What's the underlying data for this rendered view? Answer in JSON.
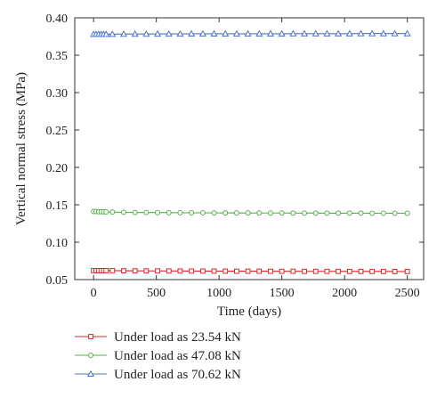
{
  "chart_data": {
    "type": "line",
    "xlabel": "Time (days)",
    "ylabel": "Vertical normal stress (MPa)",
    "xlim": [
      -150,
      2630
    ],
    "ylim": [
      0.05,
      0.4
    ],
    "xticks": [
      0,
      500,
      1000,
      1500,
      2000,
      2500
    ],
    "xtick_labels": [
      "0",
      "500",
      "1000",
      "1500",
      "2000",
      "2500"
    ],
    "yticks": [
      0.05,
      0.1,
      0.15,
      0.2,
      0.25,
      0.3,
      0.35,
      0.4
    ],
    "ytick_labels": [
      "0.05",
      "0.10",
      "0.15",
      "0.20",
      "0.25",
      "0.30",
      "0.35",
      "0.40"
    ],
    "grid": false,
    "legend_position": "bottom",
    "x": [
      0,
      20,
      40,
      60,
      80,
      100,
      150,
      240,
      330,
      420,
      510,
      600,
      690,
      780,
      870,
      960,
      1050,
      1140,
      1230,
      1320,
      1410,
      1500,
      1590,
      1680,
      1770,
      1860,
      1950,
      2040,
      2130,
      2220,
      2310,
      2400,
      2500
    ],
    "series": [
      {
        "name": "Under load as 23.54 kN",
        "color": "#d62728",
        "marker": "square",
        "values": [
          0.062,
          0.062,
          0.062,
          0.062,
          0.062,
          0.062,
          0.062,
          0.0618,
          0.0617,
          0.0616,
          0.0616,
          0.0615,
          0.0615,
          0.0614,
          0.0614,
          0.0613,
          0.0613,
          0.0612,
          0.0612,
          0.0612,
          0.0611,
          0.0611,
          0.0611,
          0.061,
          0.061,
          0.061,
          0.061,
          0.0609,
          0.0609,
          0.0609,
          0.0609,
          0.0608,
          0.0608
        ]
      },
      {
        "name": "Under load as 47.08 kN",
        "color": "#55b04a",
        "marker": "circle",
        "values": [
          0.141,
          0.141,
          0.1408,
          0.1407,
          0.1406,
          0.1405,
          0.1403,
          0.14,
          0.1398,
          0.1397,
          0.1396,
          0.1395,
          0.1394,
          0.1393,
          0.1393,
          0.1392,
          0.1392,
          0.1391,
          0.1391,
          0.139,
          0.139,
          0.139,
          0.1389,
          0.1389,
          0.1389,
          0.1388,
          0.1388,
          0.1388,
          0.1388,
          0.1387,
          0.1387,
          0.1387,
          0.1387
        ]
      },
      {
        "name": "Under load as 70.62 kN",
        "color": "#4a74c9",
        "marker": "triangle",
        "values": [
          0.378,
          0.378,
          0.378,
          0.378,
          0.378,
          0.378,
          0.3782,
          0.3783,
          0.3784,
          0.3784,
          0.3785,
          0.3785,
          0.3785,
          0.3786,
          0.3786,
          0.3786,
          0.3786,
          0.3787,
          0.3787,
          0.3787,
          0.3787,
          0.3787,
          0.3788,
          0.3788,
          0.3788,
          0.3788,
          0.3788,
          0.3788,
          0.3789,
          0.3789,
          0.3789,
          0.3789,
          0.3789
        ]
      }
    ]
  }
}
